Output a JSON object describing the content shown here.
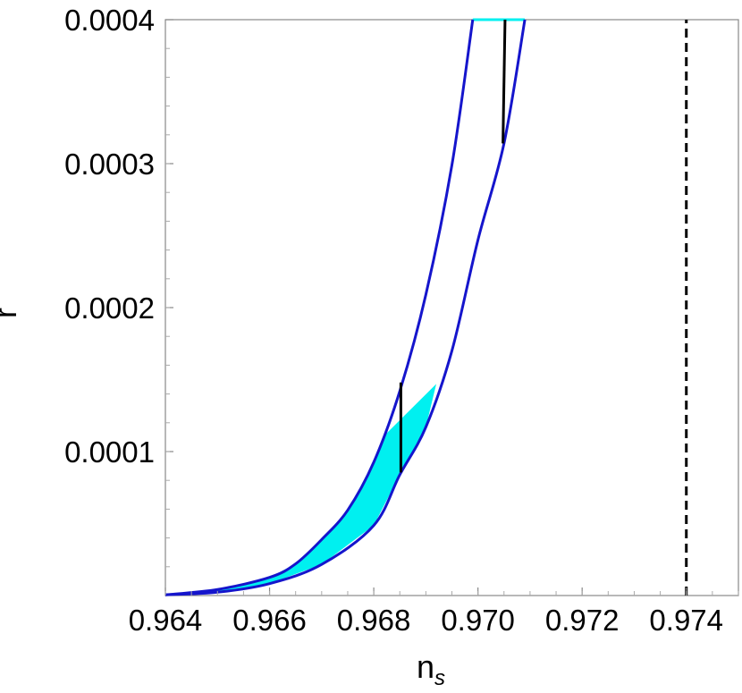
{
  "chart_data": {
    "type": "line",
    "xlabel": "n",
    "xlabel_sub": "s",
    "ylabel": "r",
    "xlim": [
      0.964,
      0.975
    ],
    "ylim": [
      0,
      0.0004
    ],
    "xticks": [
      0.964,
      0.966,
      0.968,
      0.97,
      0.972,
      0.974
    ],
    "xtick_labels": [
      "0.964",
      "0.966",
      "0.968",
      "0.970",
      "0.972",
      "0.974"
    ],
    "yticks": [
      0.0001,
      0.0002,
      0.0003,
      0.0004
    ],
    "ytick_labels": [
      "0.0001",
      "0.0002",
      "0.0003",
      "0.0004"
    ],
    "grid": false,
    "colors": {
      "curve": "#1515cc",
      "fill": "#00f0f0",
      "segment": "#000000",
      "dashed": "#000000"
    },
    "series": [
      {
        "role": "upper-boundary-curve",
        "points": [
          [
            0.964,
            5e-07
          ],
          [
            0.965,
            4.2e-06
          ],
          [
            0.966,
            1.26e-05
          ],
          [
            0.9665,
            2.2e-05
          ],
          [
            0.967,
            3.89e-05
          ],
          [
            0.9675,
            5.93e-05
          ],
          [
            0.968,
            9.26e-05
          ],
          [
            0.9685,
            0.000142
          ],
          [
            0.969,
            0.000209
          ],
          [
            0.9695,
            0.000299
          ],
          [
            0.9699,
            0.0004
          ]
        ]
      },
      {
        "role": "lower-boundary-curve",
        "points": [
          [
            0.964,
            5e-07
          ],
          [
            0.965,
            2.3e-06
          ],
          [
            0.966,
            8.3e-06
          ],
          [
            0.967,
            2.16e-05
          ],
          [
            0.968,
            4.87e-05
          ],
          [
            0.9685,
            8.39e-05
          ],
          [
            0.969,
            0.000117
          ],
          [
            0.9695,
            0.00017
          ],
          [
            0.97,
            0.000247
          ],
          [
            0.9705,
            0.000314
          ],
          [
            0.9709,
            0.0004
          ]
        ]
      },
      {
        "role": "shaded-region",
        "points": [
          [
            0.964,
            5e-07
          ],
          [
            0.965,
            4.2e-06
          ],
          [
            0.966,
            1.26e-05
          ],
          [
            0.9665,
            2.2e-05
          ],
          [
            0.967,
            3.89e-05
          ],
          [
            0.9675,
            5.93e-05
          ],
          [
            0.968,
            9.26e-05
          ],
          [
            0.9682,
            0.000111
          ],
          [
            0.9692,
            0.000147
          ],
          [
            0.969,
            0.000117
          ],
          [
            0.9685,
            8.39e-05
          ],
          [
            0.968,
            4.87e-05
          ],
          [
            0.967,
            2.16e-05
          ],
          [
            0.966,
            8.3e-06
          ],
          [
            0.965,
            2.3e-06
          ],
          [
            0.964,
            5e-07
          ]
        ]
      },
      {
        "role": "top-band-at-limit",
        "points": [
          [
            0.9699,
            0.0004
          ],
          [
            0.9709,
            0.0004
          ]
        ]
      },
      {
        "role": "vertical-segment-low",
        "points": [
          [
            0.96852,
            8.55e-05
          ],
          [
            0.96852,
            0.000148
          ]
        ]
      },
      {
        "role": "vertical-segment-high",
        "points": [
          [
            0.97048,
            0.000314
          ],
          [
            0.97052,
            0.0004
          ]
        ]
      },
      {
        "role": "dashed-vertical-line",
        "points": [
          [
            0.974,
            0
          ],
          [
            0.974,
            0.0004
          ]
        ]
      }
    ]
  }
}
